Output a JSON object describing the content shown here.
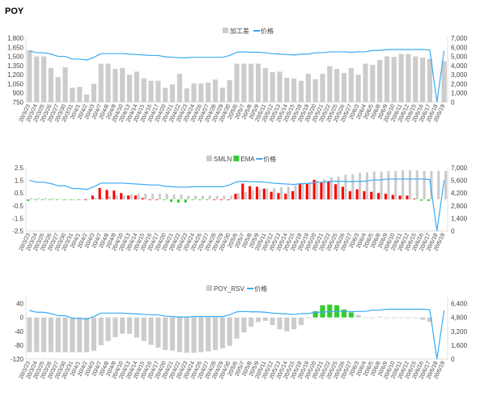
{
  "title": "POY",
  "dates": [
    "20/3/23",
    "20/3/24",
    "20/3/25",
    "20/3/26",
    "20/3/27",
    "20/3/30",
    "20/3/31",
    "20/4/1",
    "20/4/2",
    "20/4/3",
    "20/4/7",
    "20/4/8",
    "20/4/9",
    "20/4/10",
    "20/4/13",
    "20/4/14",
    "20/4/15",
    "20/4/16",
    "20/4/17",
    "20/4/20",
    "20/4/21",
    "20/4/22",
    "20/4/23",
    "20/4/24",
    "20/4/26",
    "20/4/27",
    "20/4/28",
    "20/4/29",
    "20/4/30",
    "20/5/6",
    "20/5/7",
    "20/5/8",
    "20/5/9",
    "20/5/11",
    "20/5/12",
    "20/5/13",
    "20/5/14",
    "20/5/15",
    "20/5/18",
    "20/5/19",
    "20/5/20",
    "20/5/21",
    "20/5/22",
    "20/5/25",
    "20/5/26",
    "20/5/27",
    "20/6/3",
    "20/6/4",
    "20/6/5",
    "20/6/8",
    "20/6/9",
    "20/6/10",
    "20/6/11",
    "20/6/12",
    "20/6/15",
    "20/6/16",
    "20/6/17",
    "20/6/18",
    "20/6/19"
  ],
  "price": [
    5600,
    5400,
    5400,
    5250,
    5000,
    5000,
    4700,
    4700,
    4600,
    4900,
    5300,
    5300,
    5300,
    5300,
    5250,
    5200,
    5150,
    5100,
    5100,
    4950,
    4900,
    4850,
    4850,
    4900,
    4900,
    4900,
    4900,
    4900,
    5100,
    5450,
    5500,
    5450,
    5450,
    5400,
    5300,
    5250,
    5200,
    5150,
    5250,
    5250,
    5400,
    5400,
    5500,
    5500,
    5500,
    5450,
    5500,
    5500,
    5650,
    5650,
    5750,
    5750,
    5750,
    5750,
    5750,
    5750,
    5700,
    0,
    5600
  ],
  "colors": {
    "gray": "#cccccc",
    "line": "#3aaaf5",
    "red": "#ff0000",
    "green": "#33cc33"
  },
  "chart_data": [
    {
      "type": "bar+line",
      "legend": [
        "加工差",
        "价格"
      ],
      "left_ticks": [
        "1,800",
        "1,650",
        "1,500",
        "1,350",
        "1,200",
        "1,050",
        "900",
        "750"
      ],
      "right_ticks": [
        "7,000",
        "6,000",
        "5,000",
        "4,000",
        "3,000",
        "2,000",
        "1,000",
        "0"
      ],
      "ylim": [
        750,
        1800
      ],
      "y2lim": [
        0,
        7000
      ],
      "series": [
        {
          "name": "加工差",
          "values": [
            1600,
            1500,
            1500,
            1310,
            1160,
            1320,
            985,
            1000,
            875,
            1050,
            1380,
            1380,
            1295,
            1310,
            1200,
            1250,
            1140,
            1100,
            1100,
            985,
            1040,
            1215,
            975,
            1055,
            1055,
            1070,
            1120,
            985,
            1110,
            1380,
            1380,
            1380,
            1380,
            1310,
            1240,
            1250,
            1150,
            1140,
            1100,
            1215,
            1125,
            1215,
            1340,
            1295,
            1230,
            1310,
            1200,
            1380,
            1360,
            1440,
            1500,
            1490,
            1540,
            1540,
            1500,
            1480,
            1460,
            null,
            1420
          ]
        }
      ]
    },
    {
      "type": "bar+line",
      "legend": [
        "SMLN",
        "EMA",
        "价格"
      ],
      "left_ticks": [
        "2.5",
        "1.5",
        "0.5",
        "-0.5",
        "-1.5",
        "-2.5"
      ],
      "right_ticks": [
        "7,000",
        "5,600",
        "4,200",
        "2,800",
        "1,400",
        "0"
      ],
      "ylim": [
        -2.5,
        2.5
      ],
      "y2lim": [
        0,
        7000
      ],
      "series": [
        {
          "name": "SMLN",
          "values": [
            0.1,
            0.1,
            0.1,
            0.1,
            0.05,
            0,
            0,
            0,
            0,
            0.1,
            0.1,
            0.25,
            0.3,
            0.3,
            0.4,
            0.45,
            0.45,
            0.45,
            0.45,
            0.45,
            0.4,
            0.4,
            0.3,
            0.3,
            0.3,
            0.3,
            0.3,
            0.3,
            0.3,
            0.5,
            0.6,
            0.7,
            0.8,
            0.85,
            0.9,
            0.95,
            1.0,
            1.1,
            1.25,
            1.35,
            1.5,
            1.6,
            1.75,
            1.8,
            1.95,
            2.0,
            2.1,
            2.15,
            2.2,
            2.2,
            2.25,
            2.25,
            2.3,
            2.3,
            2.3,
            2.25,
            2.25,
            2.25,
            2.25
          ]
        },
        {
          "name": "EMA",
          "values": [
            -0.12,
            -0.05,
            -0.05,
            -0.05,
            -0.05,
            -0.05,
            -0.05,
            -0.05,
            0,
            0.3,
            0.9,
            0.75,
            0.7,
            0.5,
            0.3,
            0.3,
            0.1,
            0,
            0,
            -0.05,
            -0.2,
            -0.25,
            -0.25,
            -0.05,
            -0.05,
            -0.05,
            0,
            0,
            0,
            0.45,
            1.25,
            1.05,
            1.0,
            0.85,
            0.6,
            0.5,
            0.45,
            0.65,
            1.2,
            1.25,
            1.55,
            1.35,
            1.45,
            1.2,
            1.0,
            0.65,
            0.8,
            0.65,
            0.6,
            0.5,
            0.45,
            0.35,
            0.3,
            0.3,
            0.05,
            -0.1,
            -0.12,
            null,
            null
          ]
        }
      ]
    },
    {
      "type": "bar+line",
      "legend": [
        "POY_RSV",
        "价格"
      ],
      "left_ticks": [
        "40",
        "0",
        "-40",
        "-80",
        "-120"
      ],
      "right_ticks": [
        "6,400",
        "4,800",
        "3,200",
        "1,600",
        "0"
      ],
      "ylim": [
        -120,
        60
      ],
      "y2lim": [
        0,
        7200
      ],
      "series": [
        {
          "name": "POY_RSV",
          "values": [
            -100,
            -100,
            -100,
            -100,
            -100,
            -100,
            -100,
            -100,
            -100,
            -96,
            -80,
            -68,
            -57,
            -47,
            -47,
            -58,
            -68,
            -79,
            -87,
            -94,
            -96,
            -100,
            -102,
            -102,
            -100,
            -98,
            -94,
            -89,
            -82,
            -61,
            -43,
            -27,
            -13,
            -10,
            -22,
            -34,
            -40,
            -34,
            -22,
            0,
            18,
            35,
            37,
            35,
            23,
            14,
            7,
            -1,
            0,
            2,
            -1,
            -1,
            0,
            0,
            -2,
            -7,
            -13,
            null,
            null
          ]
        }
      ],
      "highlight_dates": [
        "20/5/20",
        "20/5/21",
        "20/5/22",
        "20/5/25",
        "20/5/26",
        "20/5/27"
      ]
    }
  ]
}
